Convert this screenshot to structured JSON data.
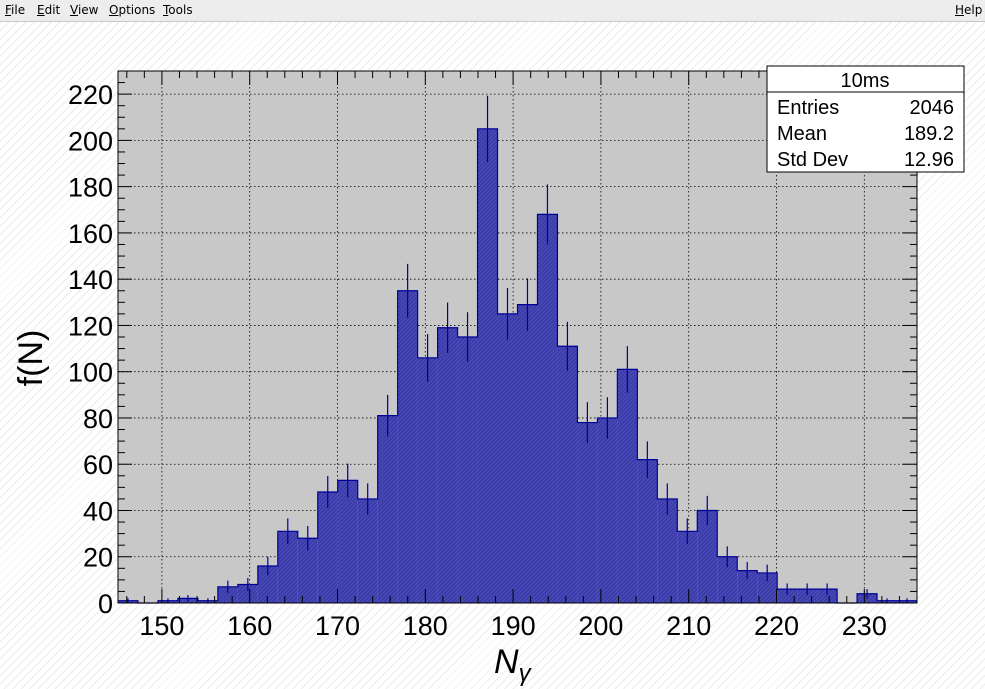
{
  "menu": {
    "file": {
      "first": "F",
      "rest": "ile"
    },
    "edit": {
      "first": "E",
      "rest": "dit"
    },
    "view": {
      "first": "V",
      "rest": "iew"
    },
    "options": {
      "first": "O",
      "rest": "ptions"
    },
    "tools": {
      "first": "T",
      "rest": "ools"
    },
    "help": {
      "first": "H",
      "rest": "elp"
    }
  },
  "colors": {
    "frame_bg": "#c8c8c8",
    "bar_fill": "#4646b4",
    "bar_line": "#000096",
    "grid": "#000000"
  },
  "stats": {
    "title": "10ms",
    "rows": [
      {
        "label": "Entries",
        "value": "2046"
      },
      {
        "label": "Mean",
        "value": "189.2"
      },
      {
        "label": "Std Dev",
        "value": "12.96"
      }
    ]
  },
  "chart_data": {
    "type": "bar",
    "histogram": true,
    "title": "",
    "xlabel": "N",
    "xlabel_subscript": "γ",
    "ylabel": "f(N)",
    "xlim": [
      145,
      236
    ],
    "ylim": [
      0,
      230
    ],
    "bin_width": 2.275,
    "grid": true,
    "error_bars": "sqrt(N)",
    "x_ticks": [
      150,
      160,
      170,
      180,
      190,
      200,
      210,
      220,
      230
    ],
    "y_ticks": [
      0,
      20,
      40,
      60,
      80,
      100,
      120,
      140,
      160,
      180,
      200,
      220
    ],
    "bins": [
      {
        "x0": 145.0,
        "count": 1
      },
      {
        "x0": 147.275,
        "count": 0
      },
      {
        "x0": 149.55,
        "count": 1
      },
      {
        "x0": 151.825,
        "count": 2
      },
      {
        "x0": 154.1,
        "count": 1
      },
      {
        "x0": 156.375,
        "count": 7
      },
      {
        "x0": 158.65,
        "count": 8
      },
      {
        "x0": 160.925,
        "count": 16
      },
      {
        "x0": 163.2,
        "count": 31
      },
      {
        "x0": 165.475,
        "count": 28
      },
      {
        "x0": 167.75,
        "count": 48
      },
      {
        "x0": 170.025,
        "count": 53
      },
      {
        "x0": 172.3,
        "count": 45
      },
      {
        "x0": 174.575,
        "count": 81
      },
      {
        "x0": 176.85,
        "count": 135
      },
      {
        "x0": 179.125,
        "count": 106
      },
      {
        "x0": 181.4,
        "count": 119
      },
      {
        "x0": 183.675,
        "count": 115
      },
      {
        "x0": 185.95,
        "count": 205
      },
      {
        "x0": 188.225,
        "count": 125
      },
      {
        "x0": 190.5,
        "count": 129
      },
      {
        "x0": 192.775,
        "count": 168
      },
      {
        "x0": 195.05,
        "count": 111
      },
      {
        "x0": 197.325,
        "count": 78
      },
      {
        "x0": 199.6,
        "count": 80
      },
      {
        "x0": 201.875,
        "count": 101
      },
      {
        "x0": 204.15,
        "count": 62
      },
      {
        "x0": 206.425,
        "count": 45
      },
      {
        "x0": 208.7,
        "count": 31
      },
      {
        "x0": 210.975,
        "count": 40
      },
      {
        "x0": 213.25,
        "count": 20
      },
      {
        "x0": 215.525,
        "count": 14
      },
      {
        "x0": 217.8,
        "count": 13
      },
      {
        "x0": 220.075,
        "count": 6
      },
      {
        "x0": 222.35,
        "count": 6
      },
      {
        "x0": 224.625,
        "count": 6
      },
      {
        "x0": 226.9,
        "count": 0
      },
      {
        "x0": 229.175,
        "count": 4
      },
      {
        "x0": 231.45,
        "count": 1
      },
      {
        "x0": 233.725,
        "count": 1
      }
    ]
  }
}
